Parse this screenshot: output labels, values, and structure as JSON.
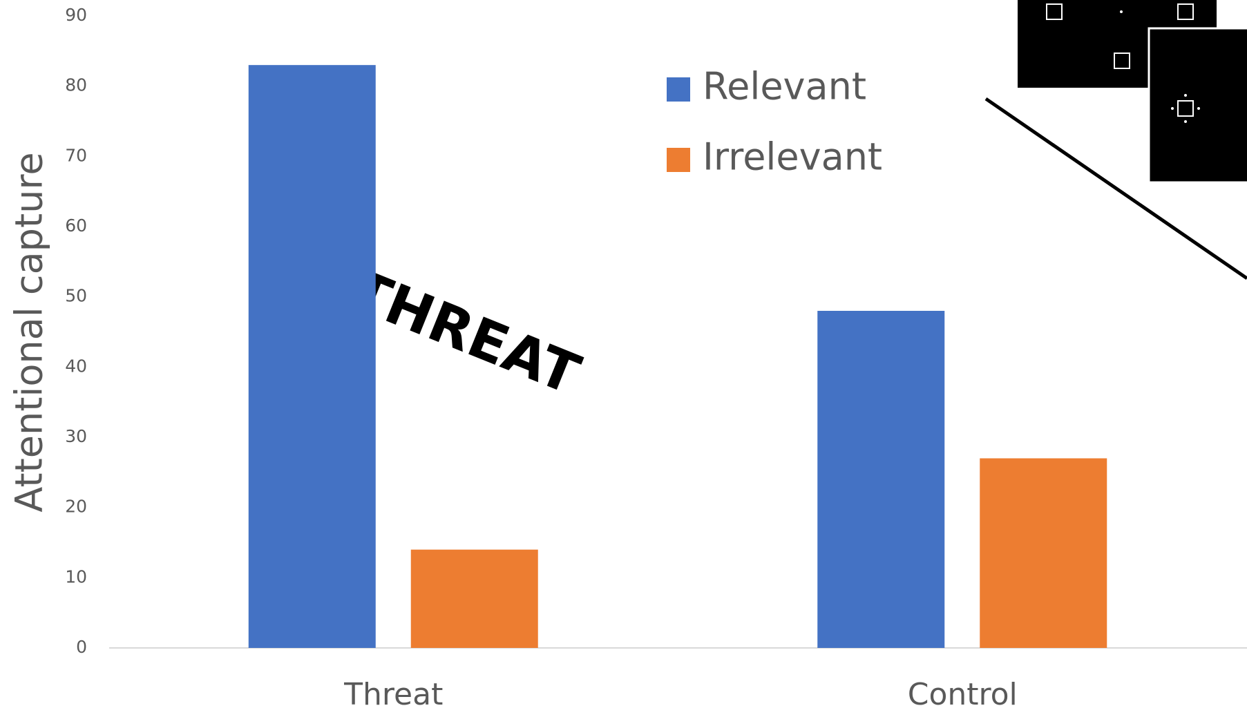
{
  "chart_data": {
    "type": "bar",
    "y_axis_label": "Attentional capture",
    "categories": [
      "Threat",
      "Control"
    ],
    "series": [
      {
        "name": "Relevant",
        "color": "#4472c4",
        "values": [
          83,
          48
        ]
      },
      {
        "name": "Irrelevant",
        "color": "#ed7d31",
        "values": [
          14,
          27
        ]
      }
    ],
    "ylim": [
      0,
      90
    ],
    "yticks": [
      0,
      10,
      20,
      30,
      40,
      50,
      60,
      70,
      80,
      90
    ],
    "grid": false,
    "legend": "top-right",
    "annotations": [
      "THREAT"
    ]
  }
}
